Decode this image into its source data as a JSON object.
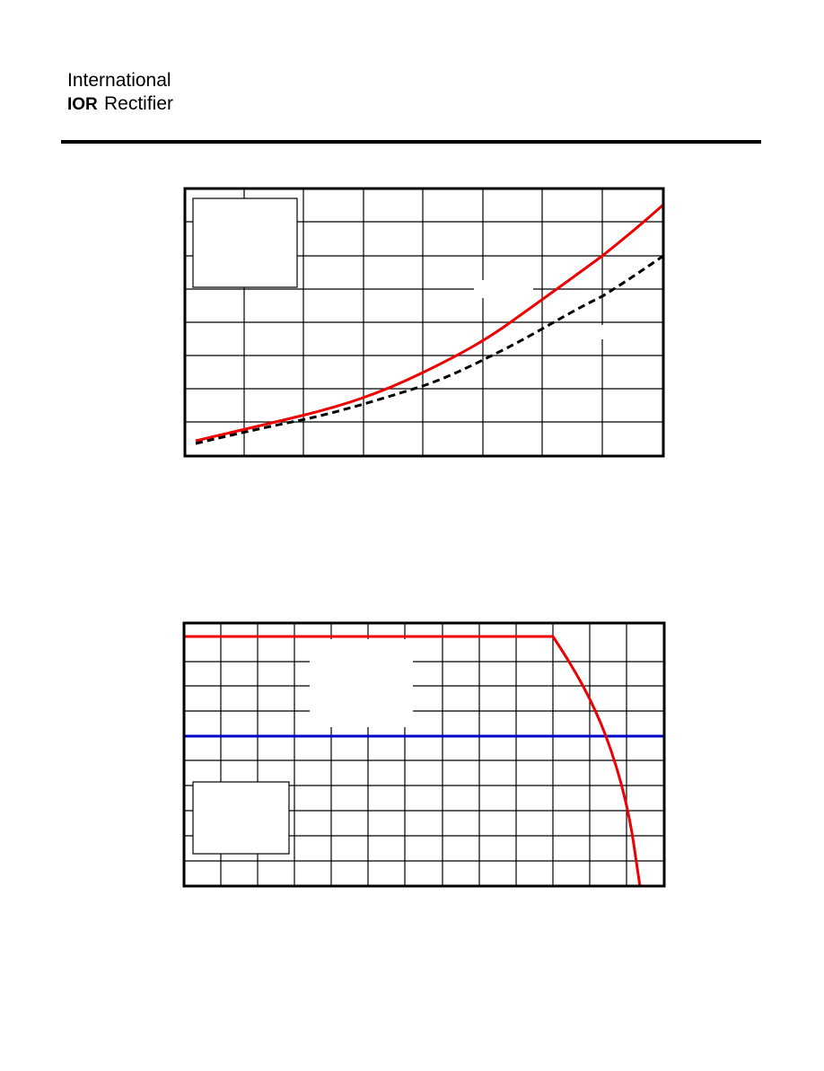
{
  "header": {
    "company_line1": "International",
    "logo_mark": "IOR",
    "company_line2": "Rectifier"
  }
}
